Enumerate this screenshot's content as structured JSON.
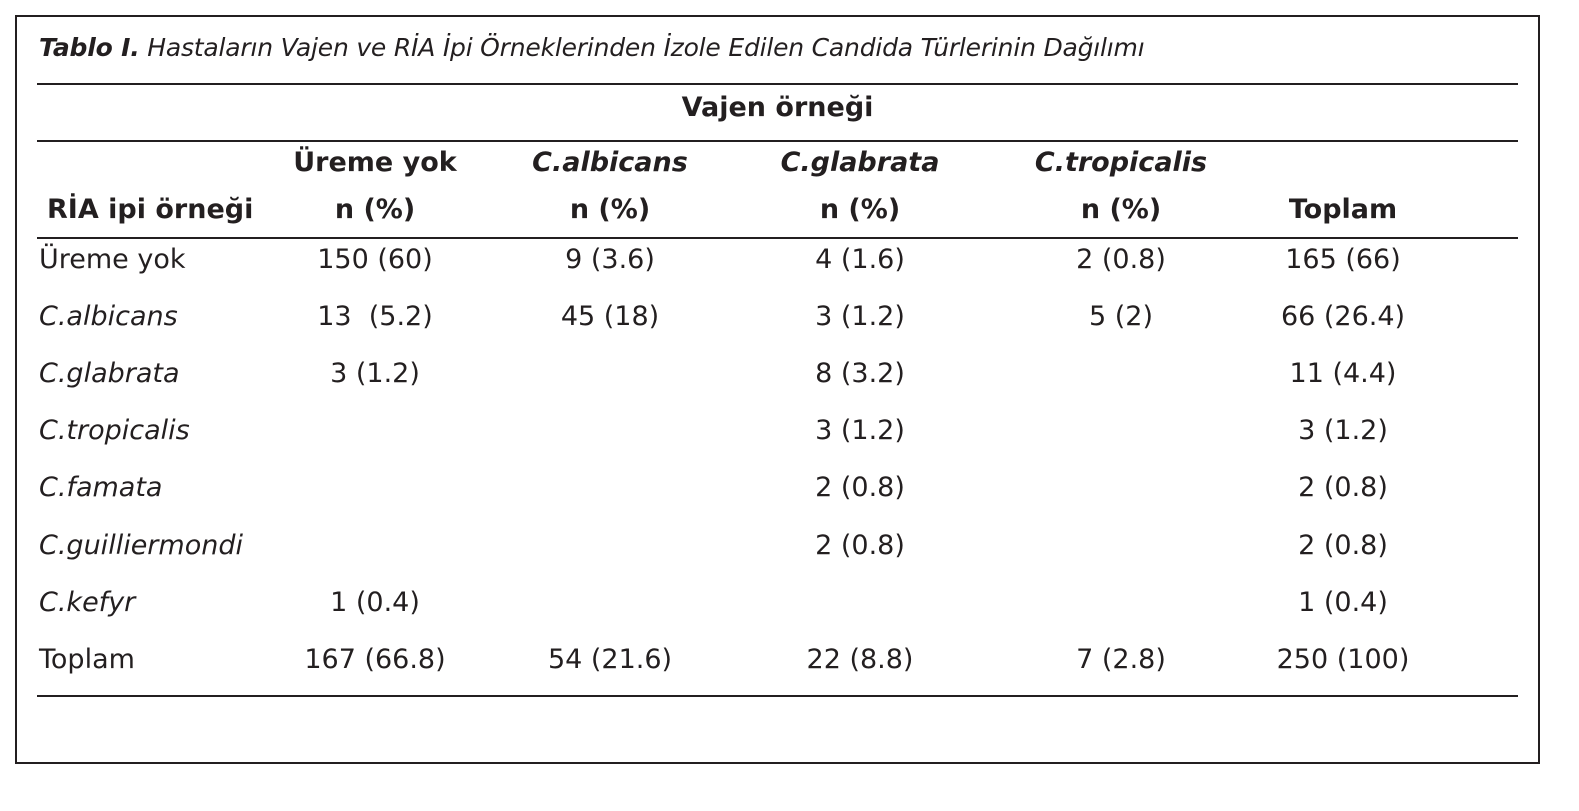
{
  "table": {
    "caption_prefix": "Tablo I.",
    "caption_text": " Hastaların Vajen ve RİA İpi Örneklerinden İzole Edilen Candida Türlerinin Dağılımı",
    "group_header": "Vajen örneği",
    "row_header": "RİA ipi örneği",
    "columns": [
      {
        "line1": "Üreme yok",
        "line2": "n (%)",
        "italic": false
      },
      {
        "line1": "C.albicans",
        "line2": "n (%)",
        "italic": true
      },
      {
        "line1": "C.glabrata",
        "line2": "n (%)",
        "italic": true
      },
      {
        "line1": "C.tropicalis",
        "line2": "n (%)",
        "italic": true
      },
      {
        "line1": "",
        "line2": "Toplam",
        "italic": false
      }
    ],
    "rows": [
      {
        "label": "Üreme yok",
        "italic": false,
        "cells": [
          "150 (60)",
          "9 (3.6)",
          "4 (1.6)",
          "2 (0.8)",
          "165 (66)"
        ]
      },
      {
        "label": "C.albicans",
        "italic": true,
        "cells": [
          "13  (5.2)",
          "45 (18)",
          "3 (1.2)",
          "5 (2)",
          "66 (26.4)"
        ]
      },
      {
        "label": "C.glabrata",
        "italic": true,
        "cells": [
          "3 (1.2)",
          "",
          "8 (3.2)",
          "",
          "11 (4.4)"
        ]
      },
      {
        "label": "C.tropicalis",
        "italic": true,
        "cells": [
          "",
          "",
          "3 (1.2)",
          "",
          "3 (1.2)"
        ]
      },
      {
        "label": "C.famata",
        "italic": true,
        "cells": [
          "",
          "",
          "2 (0.8)",
          "",
          "2 (0.8)"
        ]
      },
      {
        "label": "C.guilliermondi",
        "italic": true,
        "cells": [
          "",
          "",
          "2 (0.8)",
          "",
          "2 (0.8)"
        ]
      },
      {
        "label": "C.kefyr",
        "italic": true,
        "cells": [
          "1 (0.4)",
          "",
          "",
          "",
          "1 (0.4)"
        ]
      },
      {
        "label": "Toplam",
        "italic": false,
        "cells": [
          "167 (66.8)",
          "54 (21.6)",
          "22 (8.8)",
          "7 (2.8)",
          "250 (100)"
        ]
      }
    ]
  }
}
